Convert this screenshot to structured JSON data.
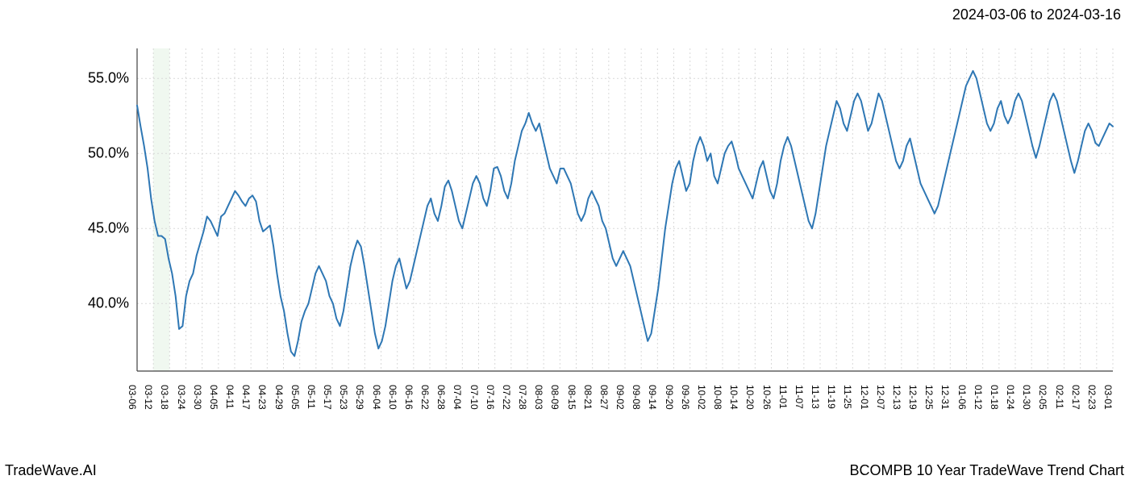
{
  "header": {
    "date_range": "2024-03-06 to 2024-03-16"
  },
  "footer": {
    "left": "TradeWave.AI",
    "right": "BCOMPB 10 Year TradeWave Trend Chart"
  },
  "chart": {
    "type": "line",
    "background_color": "#ffffff",
    "grid_color": "#d9d9d9",
    "axis_color": "#404040",
    "line_color": "#2e77b4",
    "line_width": 2,
    "title_fontsize": 18,
    "tick_fontsize_y": 18,
    "tick_fontsize_x": 12,
    "ylim": [
      35.5,
      57.0
    ],
    "y_ticks": [
      40.0,
      45.0,
      50.0,
      55.0
    ],
    "y_tick_labels": [
      "40.0%",
      "45.0%",
      "50.0%",
      "55.0%"
    ],
    "x_labels": [
      "03-06",
      "03-12",
      "03-18",
      "03-24",
      "03-30",
      "04-05",
      "04-11",
      "04-17",
      "04-23",
      "04-29",
      "05-05",
      "05-11",
      "05-17",
      "05-23",
      "05-29",
      "06-04",
      "06-10",
      "06-16",
      "06-22",
      "06-28",
      "07-04",
      "07-10",
      "07-16",
      "07-22",
      "07-28",
      "08-03",
      "08-09",
      "08-15",
      "08-21",
      "08-27",
      "09-02",
      "09-08",
      "09-14",
      "09-20",
      "09-26",
      "10-02",
      "10-08",
      "10-14",
      "10-20",
      "10-26",
      "11-01",
      "11-07",
      "11-13",
      "11-19",
      "11-25",
      "12-01",
      "12-07",
      "12-13",
      "12-19",
      "12-25",
      "12-31",
      "01-06",
      "01-12",
      "01-18",
      "01-24",
      "01-30",
      "02-05",
      "02-11",
      "02-17",
      "02-23",
      "03-01"
    ],
    "highlight_band": {
      "x_start_index": 1,
      "x_end_index": 2,
      "fill": "#b8dcb8",
      "opacity": 0.45
    },
    "series": [
      {
        "name": "BCOMPB",
        "color": "#2e77b4",
        "values": [
          53.2,
          51.8,
          50.5,
          49.0,
          47.0,
          45.5,
          44.5,
          44.5,
          44.3,
          43.0,
          42.0,
          40.5,
          38.3,
          38.5,
          40.5,
          41.5,
          42.0,
          43.2,
          44.0,
          44.8,
          45.8,
          45.5,
          45.0,
          44.5,
          45.8,
          46.0,
          46.5,
          47.0,
          47.5,
          47.2,
          46.8,
          46.5,
          47.0,
          47.2,
          46.8,
          45.5,
          44.8,
          45.0,
          45.2,
          43.8,
          42.0,
          40.5,
          39.5,
          38.0,
          36.8,
          36.5,
          37.5,
          38.8,
          39.5,
          40.0,
          41.0,
          42.0,
          42.5,
          42.0,
          41.5,
          40.5,
          40.0,
          39.0,
          38.5,
          39.5,
          41.0,
          42.5,
          43.5,
          44.2,
          43.8,
          42.5,
          41.0,
          39.5,
          38.0,
          37.0,
          37.5,
          38.5,
          40.0,
          41.5,
          42.5,
          43.0,
          42.0,
          41.0,
          41.5,
          42.5,
          43.5,
          44.5,
          45.5,
          46.5,
          47.0,
          46.0,
          45.5,
          46.5,
          47.8,
          48.2,
          47.5,
          46.5,
          45.5,
          45.0,
          46.0,
          47.0,
          48.0,
          48.5,
          48.0,
          47.0,
          46.5,
          47.5,
          49.0,
          49.1,
          48.5,
          47.5,
          47.0,
          48.0,
          49.5,
          50.5,
          51.5,
          52.0,
          52.7,
          52.0,
          51.5,
          52.0,
          51.0,
          50.0,
          49.0,
          48.5,
          48.0,
          49.0,
          49.0,
          48.5,
          48.0,
          47.0,
          46.0,
          45.5,
          46.0,
          47.0,
          47.5,
          47.0,
          46.5,
          45.5,
          45.0,
          44.0,
          43.0,
          42.5,
          43.0,
          43.5,
          43.0,
          42.5,
          41.5,
          40.5,
          39.5,
          38.5,
          37.5,
          38.0,
          39.5,
          41.0,
          43.0,
          45.0,
          46.5,
          48.0,
          49.0,
          49.5,
          48.5,
          47.5,
          48.0,
          49.5,
          50.5,
          51.1,
          50.5,
          49.5,
          50.0,
          48.5,
          48.0,
          49.0,
          50.0,
          50.5,
          50.8,
          50.0,
          49.0,
          48.5,
          48.0,
          47.5,
          47.0,
          48.0,
          49.0,
          49.5,
          48.5,
          47.5,
          47.0,
          48.0,
          49.5,
          50.5,
          51.1,
          50.5,
          49.5,
          48.5,
          47.5,
          46.5,
          45.5,
          45.0,
          46.0,
          47.5,
          49.0,
          50.5,
          51.5,
          52.5,
          53.5,
          53.0,
          52.0,
          51.5,
          52.5,
          53.5,
          54.0,
          53.5,
          52.5,
          51.5,
          52.0,
          53.0,
          54.0,
          53.5,
          52.5,
          51.5,
          50.5,
          49.5,
          49.0,
          49.5,
          50.5,
          51.0,
          50.0,
          49.0,
          48.0,
          47.5,
          47.0,
          46.5,
          46.0,
          46.5,
          47.5,
          48.5,
          49.5,
          50.5,
          51.5,
          52.5,
          53.5,
          54.5,
          55.0,
          55.5,
          55.0,
          54.0,
          53.0,
          52.0,
          51.5,
          52.0,
          53.0,
          53.5,
          52.5,
          52.0,
          52.5,
          53.5,
          54.0,
          53.5,
          52.5,
          51.5,
          50.5,
          49.7,
          50.5,
          51.5,
          52.5,
          53.5,
          54.0,
          53.5,
          52.5,
          51.5,
          50.5,
          49.5,
          48.7,
          49.5,
          50.5,
          51.5,
          52.0,
          51.5,
          50.7,
          50.5,
          51.0,
          51.5,
          52.0,
          51.8
        ]
      }
    ]
  }
}
